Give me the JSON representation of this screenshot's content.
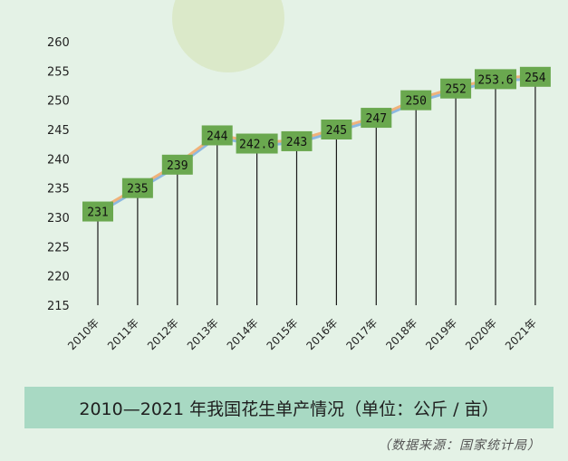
{
  "caption": "2010—2021 年我国花生单产情况（单位：公斤 / 亩）",
  "source": "（数据来源：国家统计局）",
  "colors": {
    "background": "#e4f2e6",
    "label_box": "#6aa84f",
    "caption_bar": "#a8d9c3",
    "line_orange": "#f0b27a",
    "line_blue": "#8cb8e0"
  },
  "chart_data": {
    "type": "line",
    "categories": [
      "2010年",
      "2011年",
      "2012年",
      "2013年",
      "2014年",
      "2015年",
      "2016年",
      "2017年",
      "2018年",
      "2019年",
      "2020年",
      "2021年"
    ],
    "values": [
      231,
      235,
      239,
      244,
      242.6,
      243,
      245,
      247,
      250,
      252,
      253.6,
      254
    ],
    "data_labels": [
      "231",
      "235",
      "239",
      "244",
      "242.6",
      "243",
      "245",
      "247",
      "250",
      "252",
      "253.6",
      "254"
    ],
    "yticks": [
      215,
      220,
      225,
      230,
      235,
      240,
      245,
      250,
      255,
      260
    ],
    "ylim": [
      215,
      260
    ],
    "grid": false
  }
}
